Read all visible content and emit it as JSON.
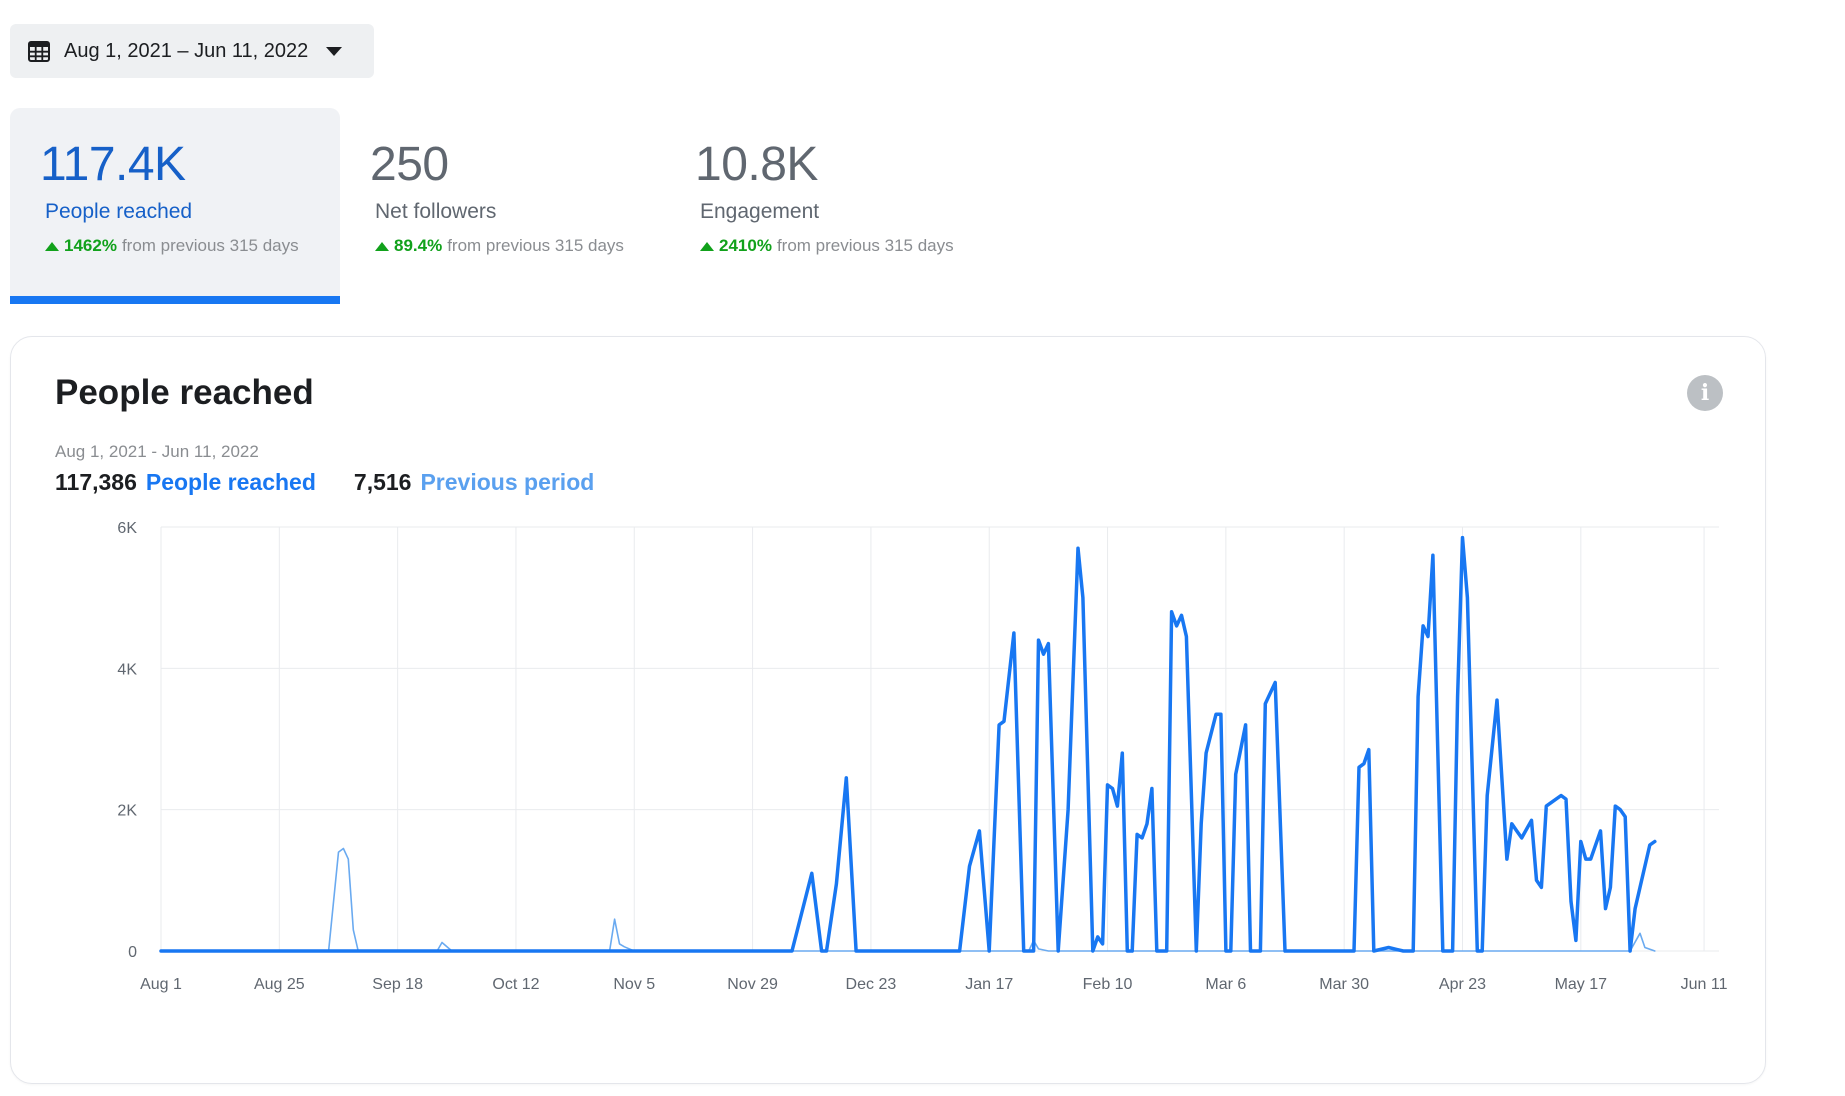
{
  "date_range": {
    "label": "Aug 1, 2021 – Jun 11, 2022"
  },
  "metrics": [
    {
      "value": "117.4K",
      "label": "People reached",
      "change": "1462%",
      "suffix": "from previous 315 days",
      "active": true
    },
    {
      "value": "250",
      "label": "Net followers",
      "change": "89.4%",
      "suffix": "from previous 315 days",
      "active": false
    },
    {
      "value": "10.8K",
      "label": "Engagement",
      "change": "2410%",
      "suffix": "from previous 315 days",
      "active": false
    }
  ],
  "card": {
    "title": "People reached",
    "period": "Aug 1, 2021 - Jun 11, 2022",
    "legend": {
      "current_value": "117,386",
      "current_label": "People reached",
      "previous_value": "7,516",
      "previous_label": "Previous period"
    }
  },
  "colors": {
    "current": "#1877f2",
    "previous": "#6aaaf0",
    "active_text": "#1660c8",
    "positive": "#11a11b"
  },
  "icons": {
    "date_picker": "calendar-icon",
    "dropdown": "caret-down-icon",
    "info": "info-icon",
    "change": "arrow-up-icon"
  },
  "chart_data": {
    "type": "line",
    "x_range": [
      0,
      314
    ],
    "ylim": [
      0,
      6000
    ],
    "y_ticks": [
      0,
      2000,
      4000,
      6000
    ],
    "y_tick_labels": [
      "0",
      "2K",
      "4K",
      "6K"
    ],
    "x_tick_labels": [
      {
        "day": 0,
        "label": "Aug 1"
      },
      {
        "day": 24,
        "label": "Aug 25"
      },
      {
        "day": 48,
        "label": "Sep 18"
      },
      {
        "day": 72,
        "label": "Oct 12"
      },
      {
        "day": 96,
        "label": "Nov 5"
      },
      {
        "day": 120,
        "label": "Nov 29"
      },
      {
        "day": 144,
        "label": "Dec 23"
      },
      {
        "day": 168,
        "label": "Jan 17"
      },
      {
        "day": 192,
        "label": "Feb 10"
      },
      {
        "day": 216,
        "label": "Mar 6"
      },
      {
        "day": 240,
        "label": "Mar 30"
      },
      {
        "day": 264,
        "label": "Apr 23"
      },
      {
        "day": 288,
        "label": "May 17"
      },
      {
        "day": 313,
        "label": "Jun 11"
      }
    ],
    "grid": true,
    "legend": "top-left",
    "series": [
      {
        "name": "People reached",
        "points": [
          [
            0,
            0
          ],
          [
            128,
            0
          ],
          [
            132,
            1100
          ],
          [
            134,
            0
          ],
          [
            135,
            0
          ],
          [
            137,
            950
          ],
          [
            139,
            2450
          ],
          [
            141,
            0
          ],
          [
            162,
            0
          ],
          [
            164,
            1200
          ],
          [
            166,
            1700
          ],
          [
            168,
            0
          ],
          [
            170,
            3200
          ],
          [
            171,
            3250
          ],
          [
            173,
            4500
          ],
          [
            175,
            0
          ],
          [
            177,
            0
          ],
          [
            178,
            4400
          ],
          [
            179,
            4200
          ],
          [
            180,
            4350
          ],
          [
            182,
            0
          ],
          [
            184,
            2000
          ],
          [
            186,
            5700
          ],
          [
            187,
            5000
          ],
          [
            189,
            0
          ],
          [
            190,
            200
          ],
          [
            191,
            100
          ],
          [
            192,
            2350
          ],
          [
            193,
            2300
          ],
          [
            194,
            2050
          ],
          [
            195,
            2800
          ],
          [
            196,
            0
          ],
          [
            197,
            0
          ],
          [
            198,
            1650
          ],
          [
            199,
            1600
          ],
          [
            200,
            1800
          ],
          [
            201,
            2300
          ],
          [
            202,
            0
          ],
          [
            204,
            0
          ],
          [
            205,
            4800
          ],
          [
            206,
            4600
          ],
          [
            207,
            4750
          ],
          [
            208,
            4450
          ],
          [
            210,
            0
          ],
          [
            211,
            1800
          ],
          [
            212,
            2800
          ],
          [
            214,
            3350
          ],
          [
            215,
            3350
          ],
          [
            216,
            0
          ],
          [
            217,
            0
          ],
          [
            218,
            2500
          ],
          [
            220,
            3200
          ],
          [
            221,
            0
          ],
          [
            223,
            0
          ],
          [
            224,
            3500
          ],
          [
            226,
            3800
          ],
          [
            228,
            0
          ],
          [
            240,
            0
          ],
          [
            242,
            0
          ],
          [
            243,
            2600
          ],
          [
            244,
            2650
          ],
          [
            245,
            2850
          ],
          [
            246,
            0
          ],
          [
            249,
            50
          ],
          [
            252,
            0
          ],
          [
            254,
            0
          ],
          [
            255,
            3600
          ],
          [
            256,
            4600
          ],
          [
            257,
            4450
          ],
          [
            258,
            5600
          ],
          [
            260,
            0
          ],
          [
            262,
            0
          ],
          [
            263,
            3600
          ],
          [
            264,
            5850
          ],
          [
            265,
            5000
          ],
          [
            267,
            0
          ],
          [
            268,
            0
          ],
          [
            269,
            2200
          ],
          [
            271,
            3550
          ],
          [
            273,
            1300
          ],
          [
            274,
            1800
          ],
          [
            275,
            1700
          ],
          [
            276,
            1600
          ],
          [
            278,
            1850
          ],
          [
            279,
            1000
          ],
          [
            280,
            900
          ],
          [
            281,
            2050
          ],
          [
            282,
            2100
          ],
          [
            284,
            2200
          ],
          [
            285,
            2150
          ],
          [
            286,
            700
          ],
          [
            287,
            150
          ],
          [
            288,
            1550
          ],
          [
            289,
            1300
          ],
          [
            290,
            1300
          ],
          [
            292,
            1700
          ],
          [
            293,
            600
          ],
          [
            294,
            900
          ],
          [
            295,
            2050
          ],
          [
            296,
            2000
          ],
          [
            297,
            1900
          ],
          [
            298,
            0
          ],
          [
            299,
            600
          ],
          [
            300,
            900
          ],
          [
            302,
            1500
          ],
          [
            303,
            1550
          ]
        ]
      },
      {
        "name": "Previous period",
        "points": [
          [
            0,
            0
          ],
          [
            34,
            0
          ],
          [
            36,
            1400
          ],
          [
            37,
            1450
          ],
          [
            38,
            1300
          ],
          [
            39,
            300
          ],
          [
            40,
            0
          ],
          [
            56,
            0
          ],
          [
            57,
            120
          ],
          [
            59,
            0
          ],
          [
            91,
            0
          ],
          [
            92,
            450
          ],
          [
            93,
            100
          ],
          [
            94,
            60
          ],
          [
            96,
            0
          ],
          [
            176,
            0
          ],
          [
            177,
            150
          ],
          [
            178,
            30
          ],
          [
            180,
            0
          ],
          [
            298,
            0
          ],
          [
            300,
            250
          ],
          [
            301,
            50
          ],
          [
            303,
            0
          ]
        ]
      }
    ]
  }
}
